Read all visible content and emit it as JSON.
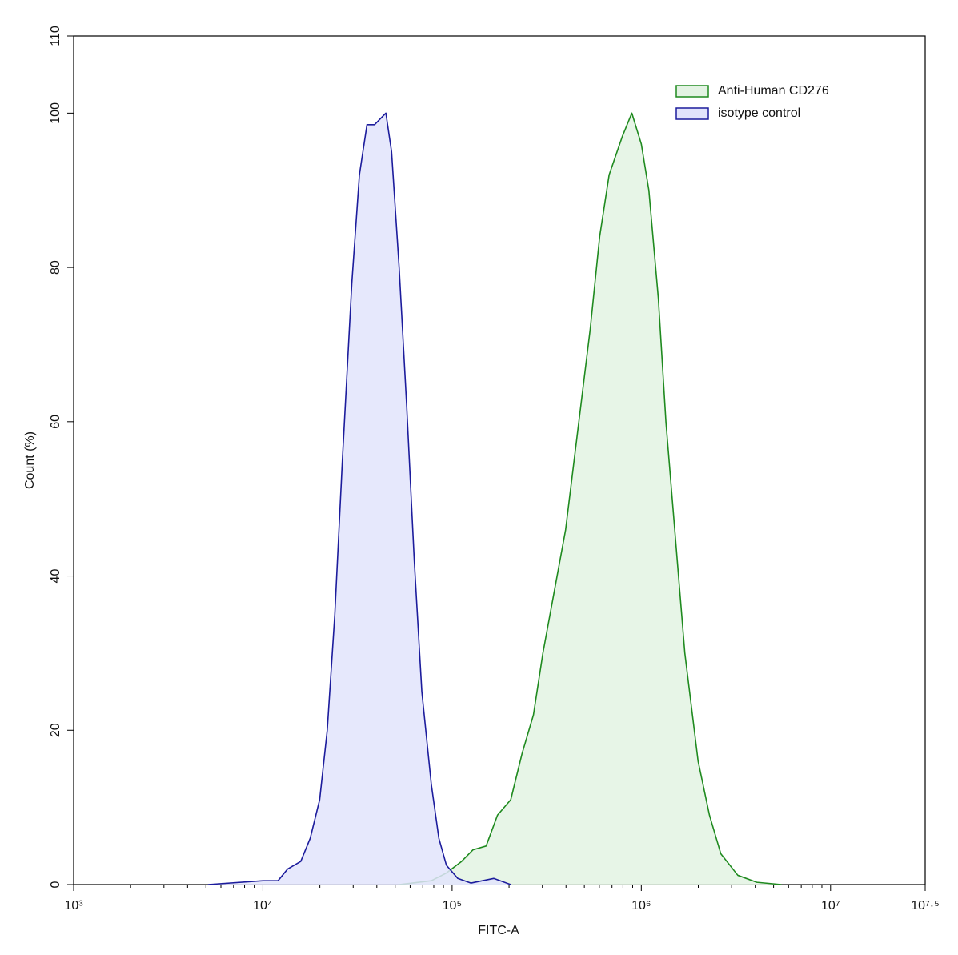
{
  "chart_data": {
    "type": "area",
    "xlabel": "FITC-A",
    "ylabel": "Count  (%)",
    "xscale": "log",
    "xlim": [
      1000,
      31622776.6
    ],
    "ylim": [
      0,
      110
    ],
    "xticks": [
      {
        "value": 1000,
        "label": "10³"
      },
      {
        "value": 10000,
        "label": "10⁴"
      },
      {
        "value": 100000,
        "label": "10⁵"
      },
      {
        "value": 1000000,
        "label": "10⁶"
      },
      {
        "value": 10000000,
        "label": "10⁷"
      },
      {
        "value": 31622776.6,
        "label": "10⁷·⁵"
      }
    ],
    "yticks": [
      0,
      20,
      40,
      60,
      80,
      100,
      110
    ],
    "legend": "upper right",
    "series": [
      {
        "name": "Anti-Human CD276",
        "color": "#1f8a1f",
        "fill": "#e3f3e3",
        "x": [
          52481,
          77625,
          93325,
          112202,
          128825,
          151356,
          173780,
          204174,
          234423,
          269153,
          301995,
          346737,
          398107,
          457088,
          537032,
          602560,
          676083,
          794328,
          891251,
          1000000,
          1096478,
          1230269,
          1348963,
          1513561,
          1698244,
          1995262,
          2290868,
          2630268,
          3235937,
          4073803,
          5495409
        ],
        "values": [
          0,
          0.5,
          1.5,
          3,
          4.5,
          5,
          9,
          11,
          17,
          22,
          30,
          38,
          46,
          58,
          72,
          84,
          92,
          97,
          100,
          96,
          90,
          76,
          60,
          45,
          30,
          16,
          9,
          4,
          1.2,
          0.3,
          0
        ]
      },
      {
        "name": "isotype control",
        "color": "#1c1c9c",
        "fill": "#e2e4fb",
        "x": [
          5129,
          10000,
          12023,
          13490,
          15849,
          17783,
          19953,
          21878,
          23988,
          26303,
          29512,
          32359,
          35481,
          38905,
          44668,
          47863,
          52481,
          57544,
          63096,
          69183,
          77625,
          85114,
          93325,
          107152,
          125893,
          165959,
          204174
        ],
        "values": [
          0,
          0.5,
          0.5,
          2,
          3,
          6,
          11,
          20,
          35,
          55,
          78,
          92,
          98.5,
          98.5,
          100,
          95,
          80,
          62,
          42,
          25,
          13,
          6,
          2.5,
          0.8,
          0.2,
          0.8,
          0
        ]
      }
    ]
  }
}
